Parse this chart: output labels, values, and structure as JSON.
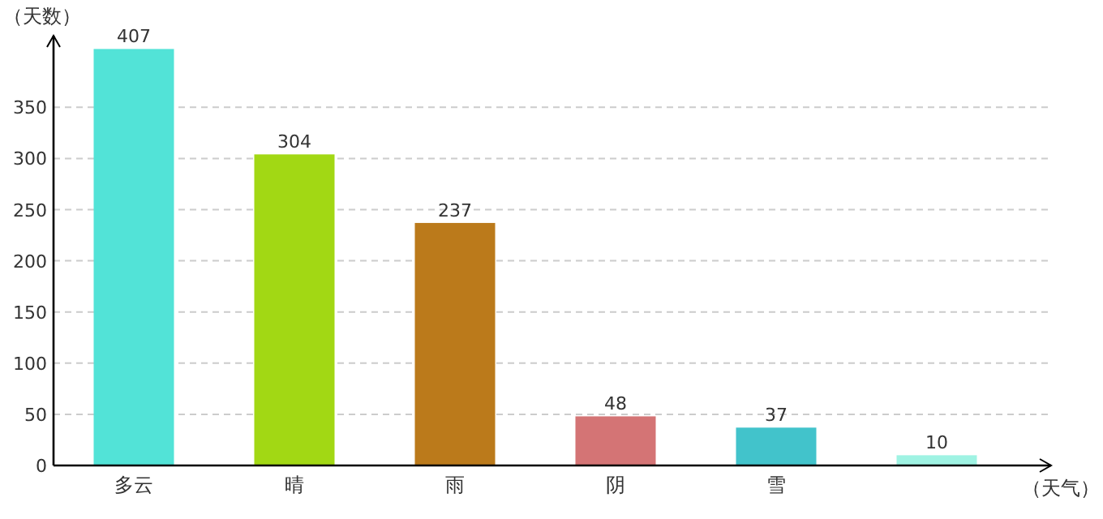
{
  "chart_data": {
    "type": "bar",
    "xlabel": "（天气）",
    "ylabel": "（天数）",
    "categories": [
      "多云",
      "晴",
      "雨",
      "阴",
      "雪",
      null
    ],
    "values": [
      407,
      304,
      237,
      48,
      37,
      10
    ],
    "colors": [
      "#52e3d7",
      "#a2d814",
      "#bb7a1b",
      "#d47475",
      "#42c3cb",
      "#9ff3e3"
    ],
    "ylim": [
      0,
      420
    ],
    "yticks": [
      0,
      50,
      100,
      150,
      200,
      250,
      300,
      350
    ],
    "grid": "y",
    "data_labels": true
  }
}
